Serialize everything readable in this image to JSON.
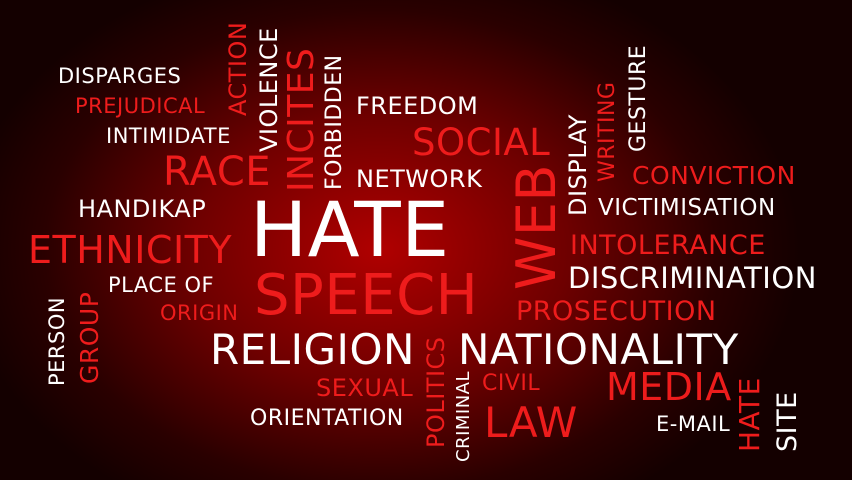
{
  "colors": {
    "accent_red": "#ee1c1c",
    "text_white": "#ffffff",
    "background_center": "#b00000",
    "background_edge": "#140000"
  },
  "words": [
    {
      "text": "DISPARGES",
      "color": "white"
    },
    {
      "text": "PREJUDICAL",
      "color": "red"
    },
    {
      "text": "INTIMIDATE",
      "color": "white"
    },
    {
      "text": "ACTION",
      "color": "red"
    },
    {
      "text": "VIOLENCE",
      "color": "white"
    },
    {
      "text": "INCITES",
      "color": "red"
    },
    {
      "text": "FORBIDDEN",
      "color": "white"
    },
    {
      "text": "FREEDOM",
      "color": "white"
    },
    {
      "text": "SOCIAL",
      "color": "red"
    },
    {
      "text": "NETWORK",
      "color": "white"
    },
    {
      "text": "RACE",
      "color": "red"
    },
    {
      "text": "HANDIKAP",
      "color": "white"
    },
    {
      "text": "HATE",
      "color": "white"
    },
    {
      "text": "ETHNICITY",
      "color": "red"
    },
    {
      "text": "SPEECH",
      "color": "red"
    },
    {
      "text": "WEB",
      "color": "red"
    },
    {
      "text": "DISPLAY",
      "color": "white"
    },
    {
      "text": "WRITING",
      "color": "red"
    },
    {
      "text": "GESTURE",
      "color": "white"
    },
    {
      "text": "CONVICTION",
      "color": "red"
    },
    {
      "text": "VICTIMISATION",
      "color": "white"
    },
    {
      "text": "INTOLERANCE",
      "color": "red"
    },
    {
      "text": "DISCRIMINATION",
      "color": "white"
    },
    {
      "text": "PLACE OF",
      "color": "white"
    },
    {
      "text": "ORIGIN",
      "color": "red"
    },
    {
      "text": "PROSECUTION",
      "color": "red"
    },
    {
      "text": "PERSON",
      "color": "white"
    },
    {
      "text": "GROUP",
      "color": "red"
    },
    {
      "text": "RELIGION",
      "color": "white"
    },
    {
      "text": "NATIONALITY",
      "color": "white"
    },
    {
      "text": "SEXUAL",
      "color": "red"
    },
    {
      "text": "POLITICS",
      "color": "red"
    },
    {
      "text": "CIVIL",
      "color": "red"
    },
    {
      "text": "CRIMINAL",
      "color": "white"
    },
    {
      "text": "MEDIA",
      "color": "red"
    },
    {
      "text": "ORIENTATION",
      "color": "white"
    },
    {
      "text": "LAW",
      "color": "red"
    },
    {
      "text": "E-MAIL",
      "color": "white"
    },
    {
      "text": "HATE",
      "color": "red"
    },
    {
      "text": "SITE",
      "color": "white"
    }
  ]
}
